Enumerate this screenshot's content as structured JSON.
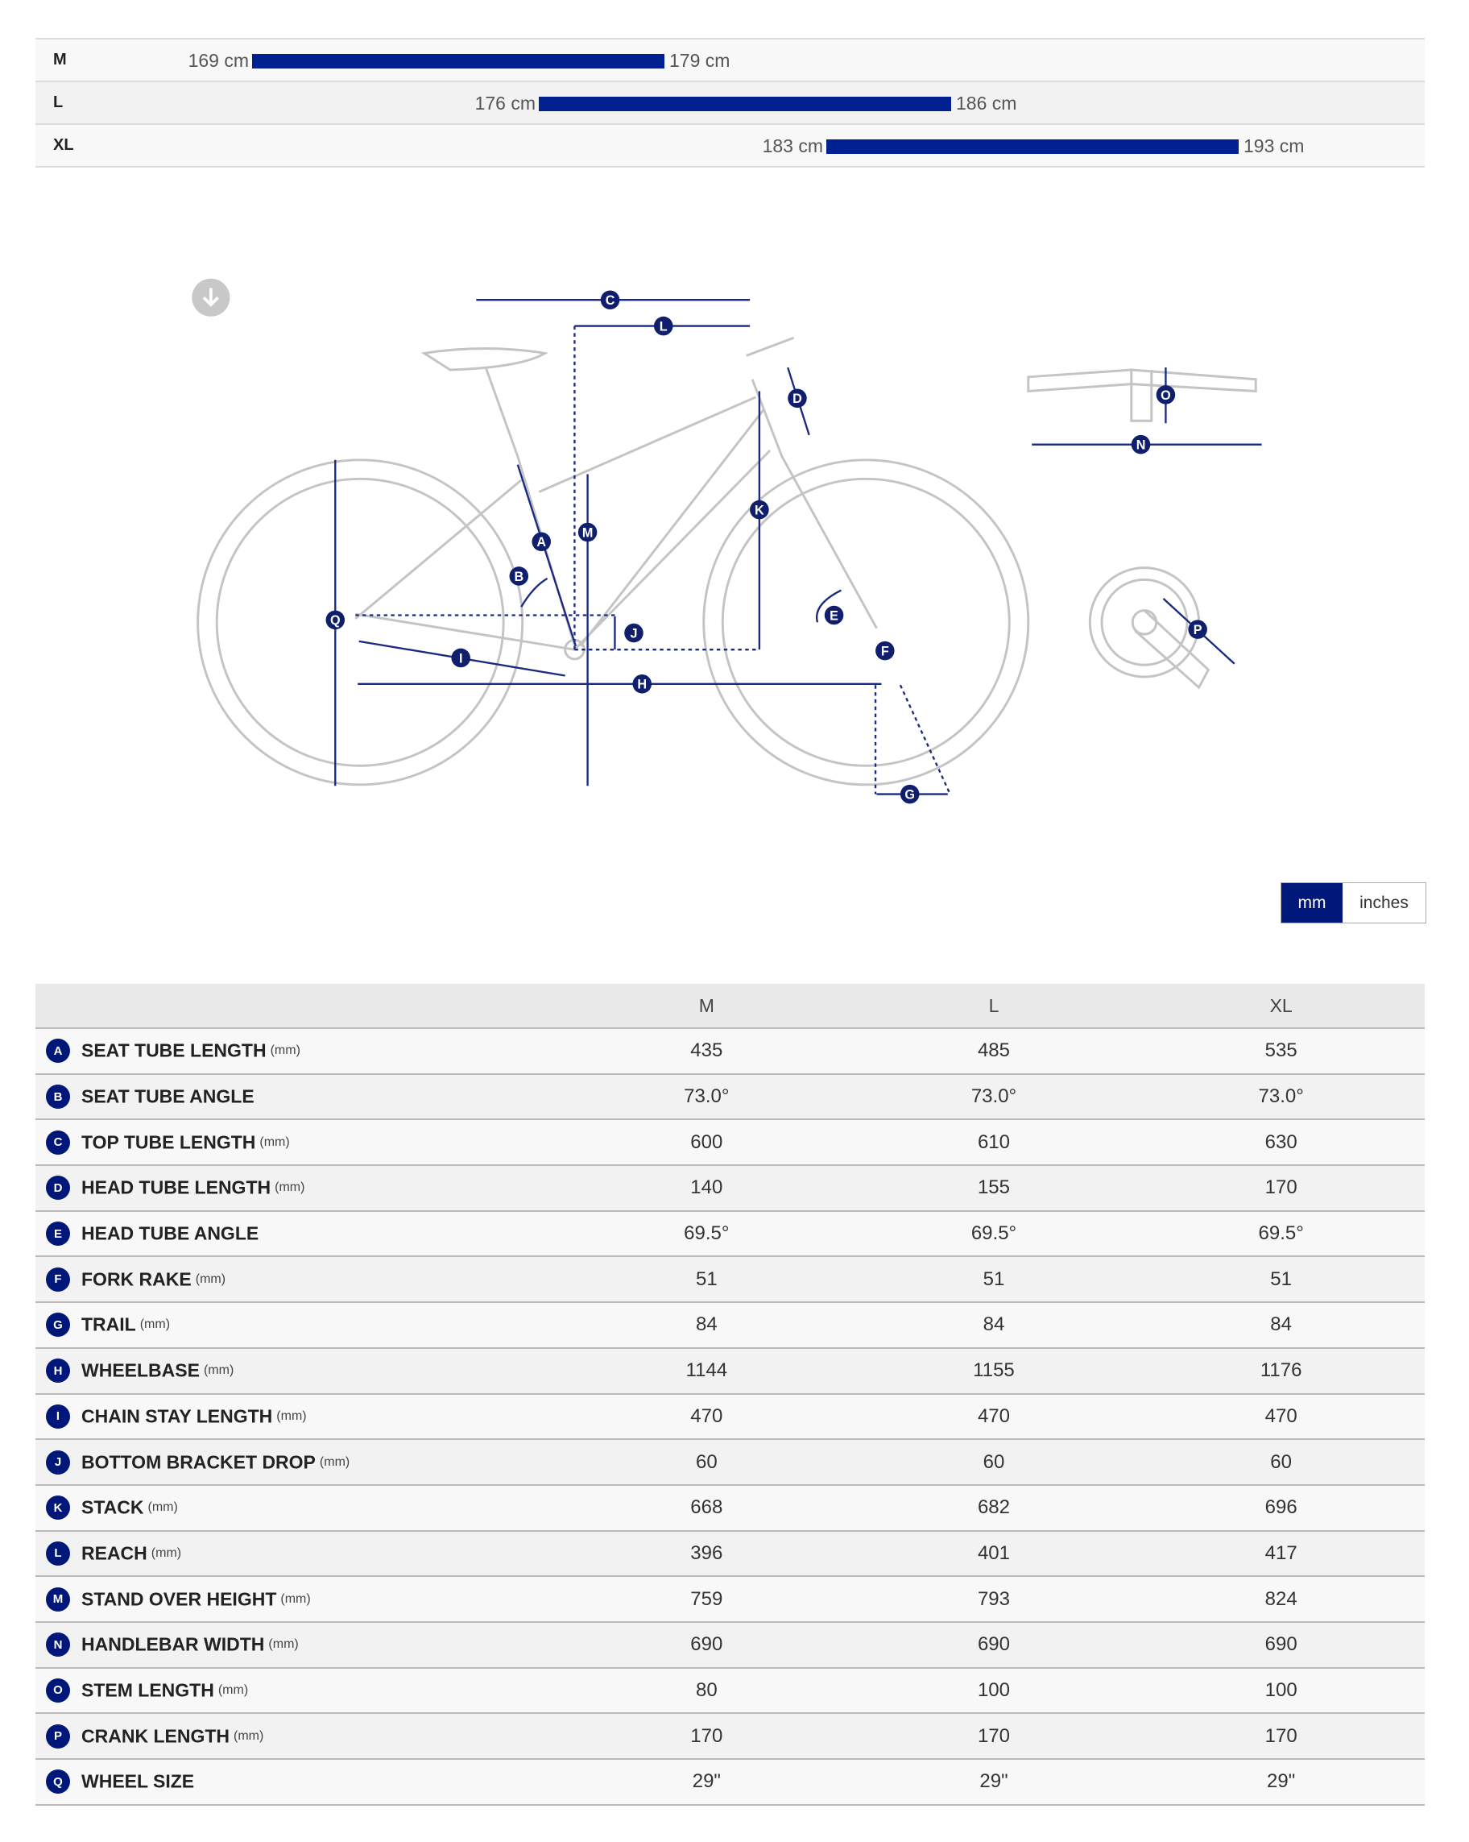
{
  "size_chart": [
    {
      "size": "M",
      "min": "169 cm",
      "max": "179 cm",
      "range_cm": [
        169,
        179
      ]
    },
    {
      "size": "L",
      "min": "176 cm",
      "max": "186 cm",
      "range_cm": [
        176,
        186
      ]
    },
    {
      "size": "XL",
      "min": "183 cm",
      "max": "193 cm",
      "range_cm": [
        183,
        193
      ]
    }
  ],
  "diagram": {
    "download_icon": "arrow-down-circle-icon",
    "labels": [
      "A",
      "B",
      "C",
      "D",
      "E",
      "F",
      "G",
      "H",
      "I",
      "J",
      "K",
      "L",
      "M",
      "N",
      "O",
      "P",
      "Q"
    ],
    "line_color": "#1a2a80"
  },
  "units": {
    "mm": "mm",
    "inches": "inches",
    "active": "mm",
    "active_color": "#00177a"
  },
  "table": {
    "columns": [
      "M",
      "L",
      "XL"
    ],
    "rows": [
      {
        "key": "A",
        "name": "SEAT TUBE LENGTH",
        "unit": "(mm)",
        "values": [
          "435",
          "485",
          "535"
        ]
      },
      {
        "key": "B",
        "name": "SEAT TUBE ANGLE",
        "unit": "",
        "values": [
          "73.0°",
          "73.0°",
          "73.0°"
        ]
      },
      {
        "key": "C",
        "name": "TOP TUBE LENGTH",
        "unit": "(mm)",
        "values": [
          "600",
          "610",
          "630"
        ]
      },
      {
        "key": "D",
        "name": "HEAD TUBE LENGTH",
        "unit": "(mm)",
        "values": [
          "140",
          "155",
          "170"
        ]
      },
      {
        "key": "E",
        "name": "HEAD TUBE ANGLE",
        "unit": "",
        "values": [
          "69.5°",
          "69.5°",
          "69.5°"
        ]
      },
      {
        "key": "F",
        "name": "FORK RAKE",
        "unit": "(mm)",
        "values": [
          "51",
          "51",
          "51"
        ]
      },
      {
        "key": "G",
        "name": "TRAIL",
        "unit": "(mm)",
        "values": [
          "84",
          "84",
          "84"
        ]
      },
      {
        "key": "H",
        "name": "WHEELBASE",
        "unit": "(mm)",
        "values": [
          "1144",
          "1155",
          "1176"
        ]
      },
      {
        "key": "I",
        "name": "CHAIN STAY LENGTH",
        "unit": "(mm)",
        "values": [
          "470",
          "470",
          "470"
        ]
      },
      {
        "key": "J",
        "name": "BOTTOM BRACKET DROP",
        "unit": "(mm)",
        "values": [
          "60",
          "60",
          "60"
        ]
      },
      {
        "key": "K",
        "name": "STACK",
        "unit": "(mm)",
        "values": [
          "668",
          "682",
          "696"
        ]
      },
      {
        "key": "L",
        "name": "REACH",
        "unit": "(mm)",
        "values": [
          "396",
          "401",
          "417"
        ]
      },
      {
        "key": "M",
        "name": "STAND OVER HEIGHT",
        "unit": "(mm)",
        "values": [
          "759",
          "793",
          "824"
        ]
      },
      {
        "key": "N",
        "name": "HANDLEBAR WIDTH",
        "unit": "(mm)",
        "values": [
          "690",
          "690",
          "690"
        ]
      },
      {
        "key": "O",
        "name": "STEM LENGTH",
        "unit": "(mm)",
        "values": [
          "80",
          "100",
          "100"
        ]
      },
      {
        "key": "P",
        "name": "CRANK LENGTH",
        "unit": "(mm)",
        "values": [
          "170",
          "170",
          "170"
        ]
      },
      {
        "key": "Q",
        "name": "WHEEL SIZE",
        "unit": "",
        "values": [
          "29\"",
          "29\"",
          "29\""
        ]
      }
    ]
  }
}
